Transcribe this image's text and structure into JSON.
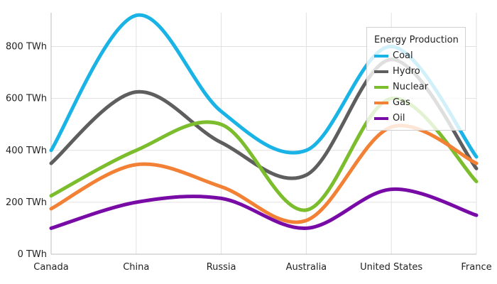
{
  "chart_data": {
    "type": "line",
    "categories": [
      "Canada",
      "China",
      "Russia",
      "Australia",
      "United States",
      "France"
    ],
    "ylim": [
      0,
      930
    ],
    "y_ticks": [
      {
        "value": 0,
        "label": "0 TWh"
      },
      {
        "value": 200,
        "label": "200 TWh"
      },
      {
        "value": 400,
        "label": "400 TWh"
      },
      {
        "value": 600,
        "label": "600 TWh"
      },
      {
        "value": 800,
        "label": "800 TWh"
      }
    ],
    "grid": true,
    "smooth": true,
    "legend": {
      "title": "Energy Production",
      "position": "top-right"
    },
    "series": [
      {
        "name": "Coal",
        "color": "#1ab3e6",
        "values": [
          400,
          920,
          550,
          400,
          800,
          375
        ]
      },
      {
        "name": "Hydro",
        "color": "#5e5e5e",
        "values": [
          350,
          625,
          430,
          305,
          750,
          330
        ]
      },
      {
        "name": "Nuclear",
        "color": "#7bbd2c",
        "values": [
          225,
          400,
          500,
          170,
          600,
          280
        ]
      },
      {
        "name": "Gas",
        "color": "#f28035",
        "values": [
          175,
          345,
          260,
          130,
          490,
          350
        ]
      },
      {
        "name": "Oil",
        "color": "#780aa6",
        "values": [
          100,
          200,
          215,
          100,
          250,
          150
        ]
      }
    ]
  }
}
